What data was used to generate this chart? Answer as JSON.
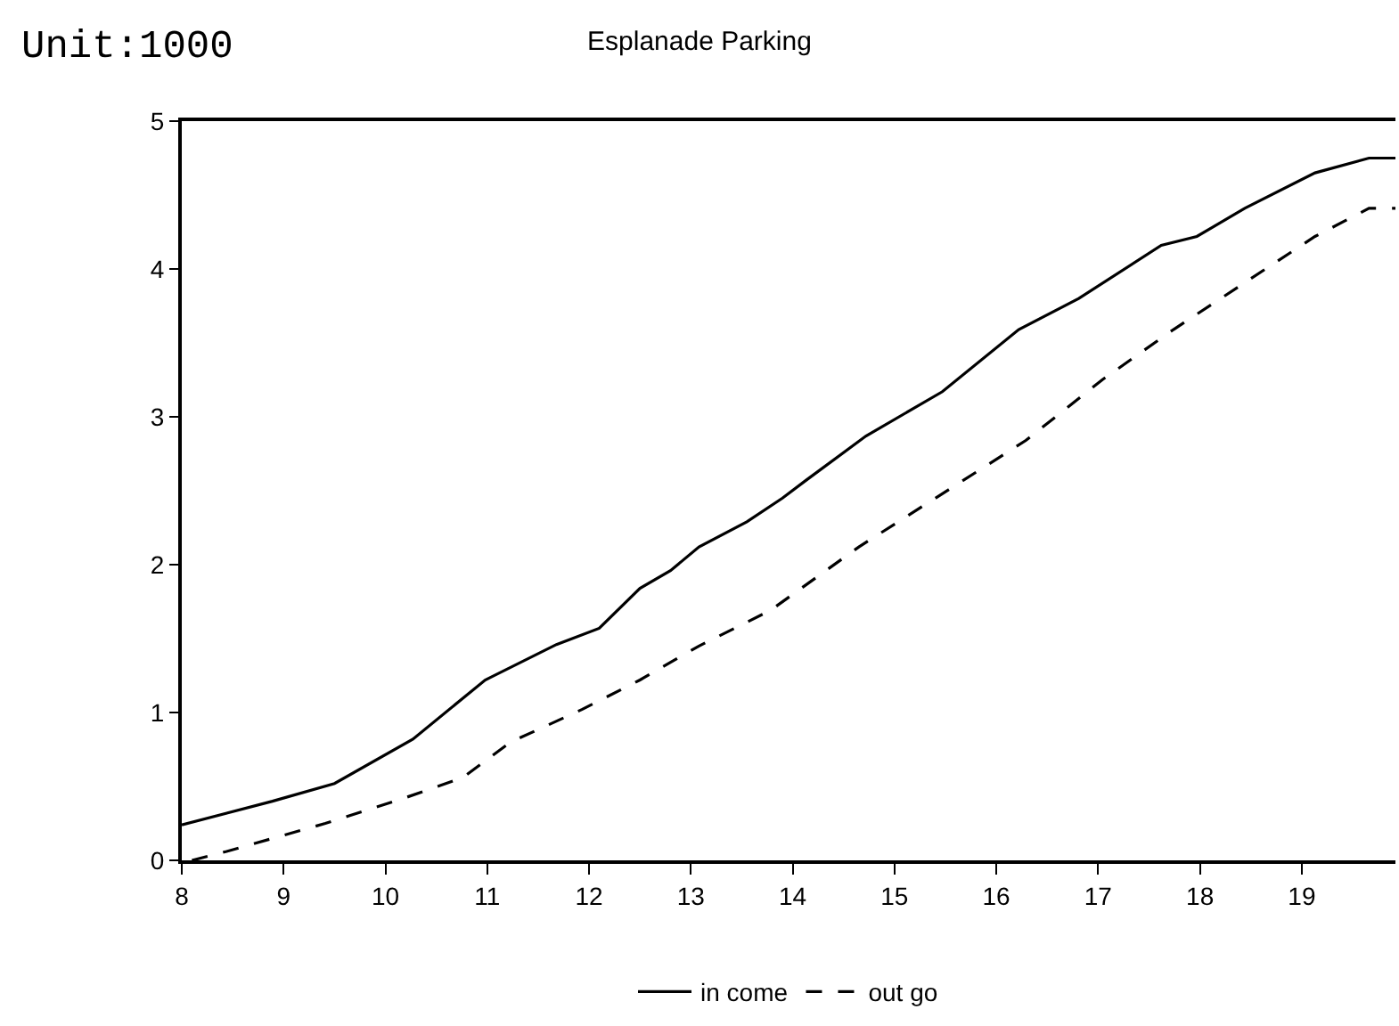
{
  "chart_data": {
    "type": "line",
    "title": "Esplanade Parking",
    "annotations": [
      "Unit:1000"
    ],
    "x": [
      8.0,
      8.89,
      9.5,
      10.27,
      10.98,
      11.68,
      12.1,
      12.5,
      12.8,
      13.08,
      13.55,
      13.9,
      14.13,
      14.72,
      15.47,
      16.22,
      16.81,
      17.62,
      17.97,
      18.44,
      19.13,
      19.66,
      19.92
    ],
    "series": [
      {
        "name": "in come",
        "color": "#000000",
        "line_style": "solid",
        "values": [
          0.24,
          0.4,
          0.52,
          0.82,
          1.22,
          1.46,
          1.57,
          1.84,
          1.96,
          2.12,
          2.29,
          2.45,
          2.57,
          2.87,
          3.17,
          3.59,
          3.8,
          4.16,
          4.22,
          4.41,
          4.65,
          4.75,
          4.75
        ]
      },
      {
        "name": "out go",
        "color": "#000000",
        "line_style": "dashed",
        "x": [
          8.1,
          8.44,
          9.41,
          10.18,
          10.76,
          11.23,
          11.93,
          12.5,
          13.08,
          13.43,
          13.78,
          14.65,
          15.47,
          16.29,
          17.04,
          17.74,
          18.49,
          19.13,
          19.66,
          19.92
        ],
        "values": [
          0.0,
          0.06,
          0.25,
          0.42,
          0.56,
          0.8,
          1.02,
          1.22,
          1.45,
          1.57,
          1.69,
          2.12,
          2.48,
          2.84,
          3.25,
          3.59,
          3.93,
          4.22,
          4.41,
          4.41
        ]
      }
    ],
    "xlim": [
      8,
      19.92
    ],
    "xticks": [
      8,
      9,
      10,
      11,
      12,
      13,
      14,
      15,
      16,
      17,
      18,
      19
    ],
    "ylim": [
      0,
      5
    ],
    "yticks": [
      0,
      1,
      2,
      3,
      4,
      5
    ],
    "legend": "bottom",
    "marker": "none"
  }
}
